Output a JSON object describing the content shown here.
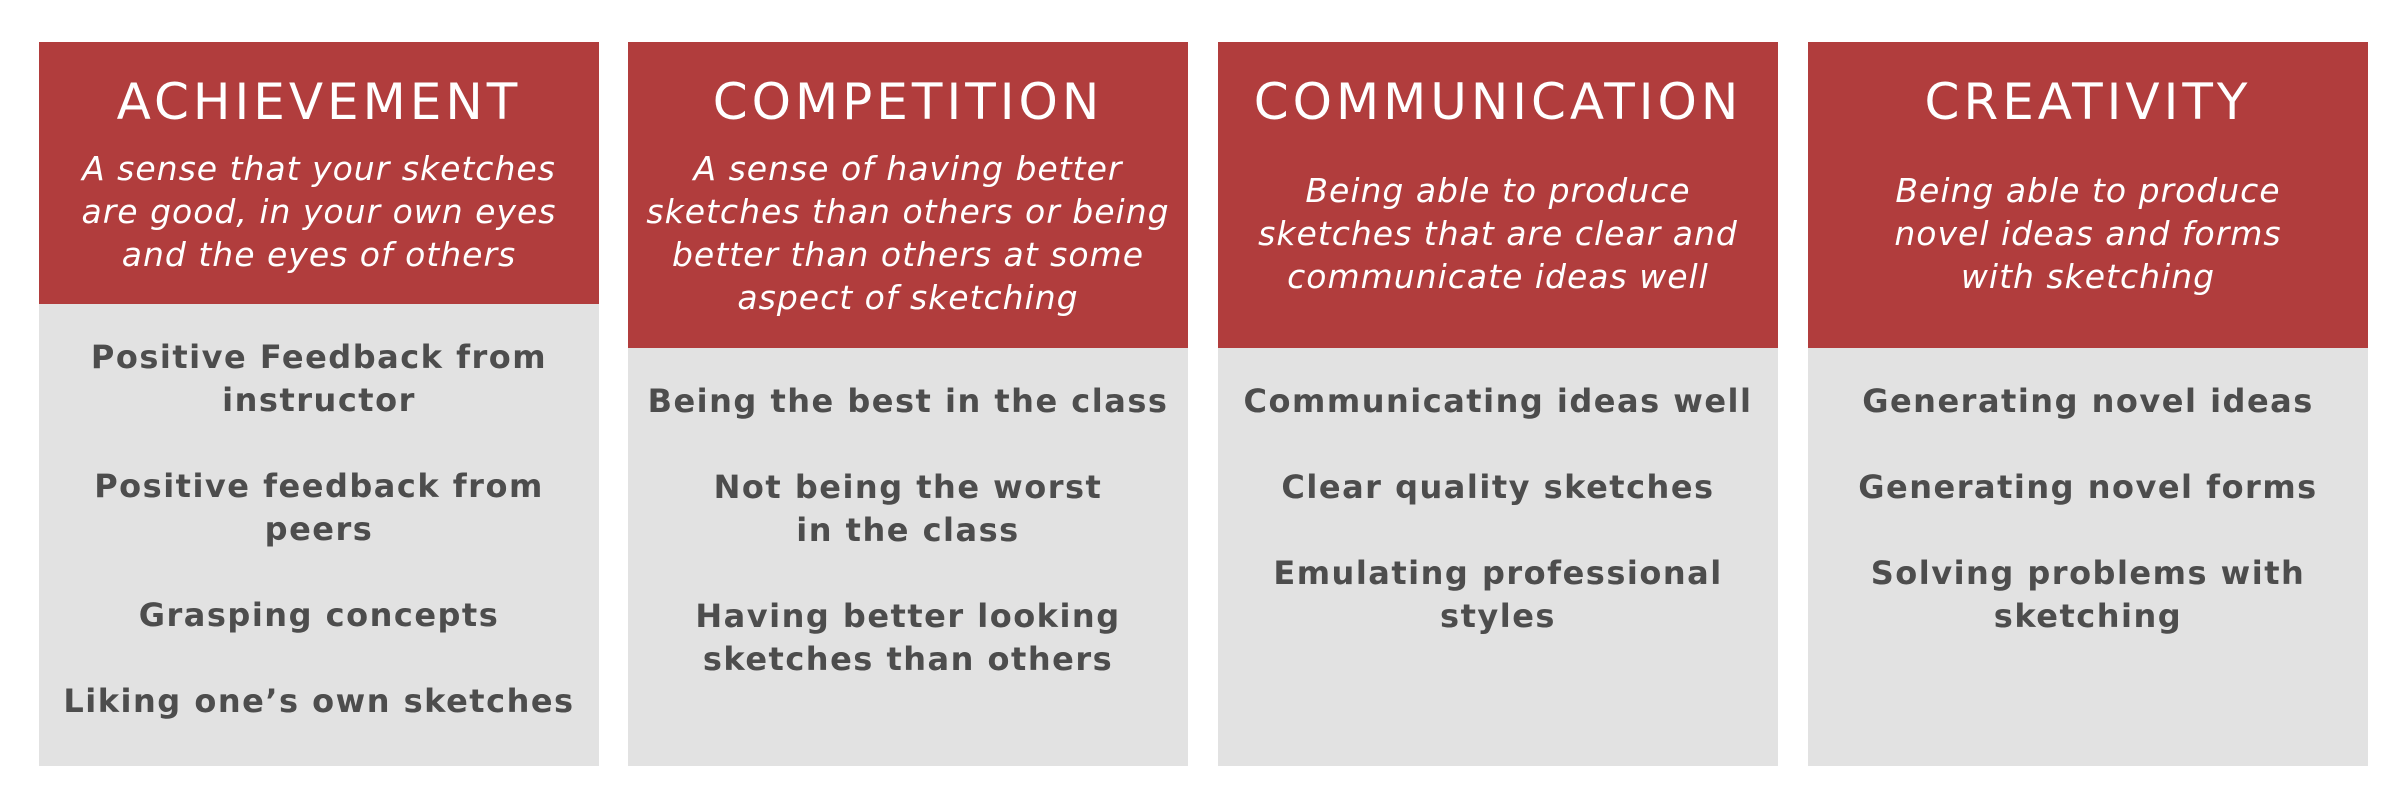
{
  "cards": [
    {
      "title": "ACHIEVEMENT",
      "description": "A sense that your sketches\nare good, in your own eyes\nand the eyes of others",
      "items": [
        "Positive Feedback from\ninstructor",
        "Positive feedback from peers",
        "Grasping concepts",
        "Liking one’s own sketches"
      ]
    },
    {
      "title": "COMPETITION",
      "description": "A sense of having better\nsketches than others or being\nbetter than others at some\naspect of sketching",
      "items": [
        "Being the best in the class",
        "Not being the worst\nin the class",
        "Having better looking\nsketches than others"
      ]
    },
    {
      "title": "COMMUNICATION",
      "description": "Being able to produce\nsketches that are clear and\ncommunicate ideas well",
      "items": [
        "Communicating ideas well",
        "Clear quality sketches",
        "Emulating professional\nstyles"
      ]
    },
    {
      "title": "CREATIVITY",
      "description": "Being able to produce\nnovel ideas and forms\nwith sketching",
      "items": [
        "Generating novel ideas",
        "Generating novel forms",
        "Solving problems with\nsketching"
      ]
    }
  ],
  "colors": {
    "header_background": "#b13d3d",
    "body_background": "#e2e2e2",
    "header_text": "#ffffff",
    "body_text": "#4d4d4d"
  }
}
